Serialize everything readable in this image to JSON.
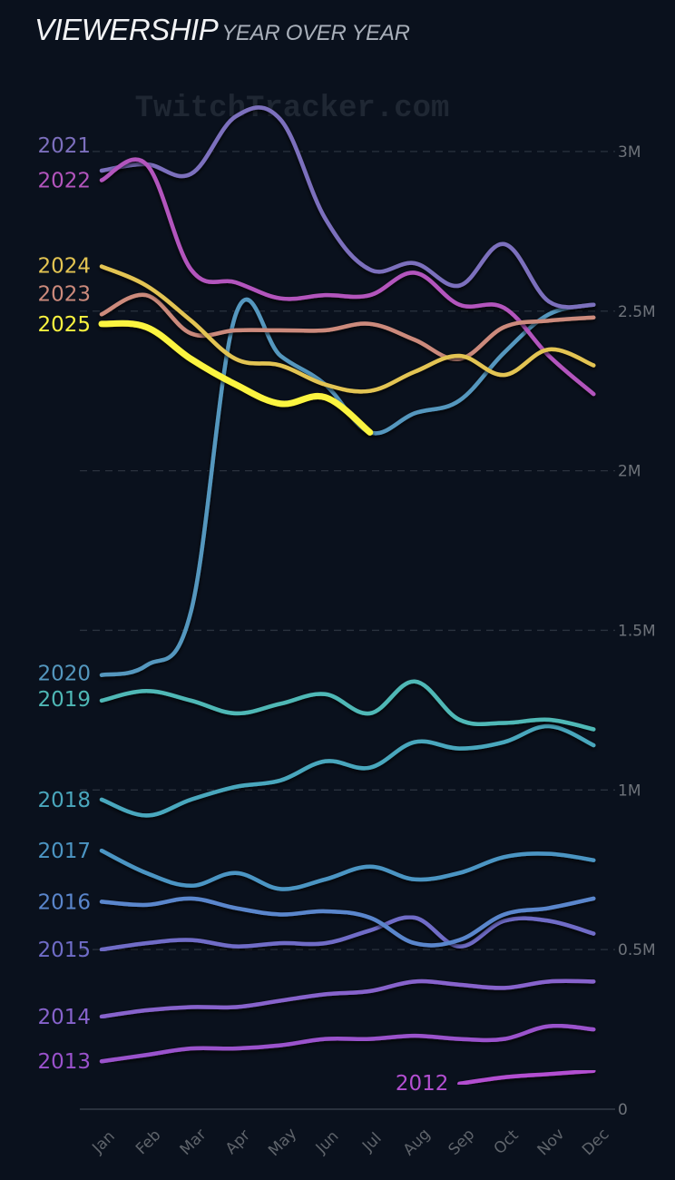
{
  "header": {
    "title": "VIEWERSHIP",
    "subtitle": "YEAR OVER YEAR"
  },
  "watermark": "TwitchTracker.com",
  "chart_data": {
    "type": "line",
    "title": "VIEWERSHIP",
    "subtitle": "YEAR OVER YEAR",
    "xlabel": "",
    "ylabel": "",
    "unit": "millions of viewers",
    "categories": [
      "Jan",
      "Feb",
      "Mar",
      "Apr",
      "May",
      "Jun",
      "Jul",
      "Aug",
      "Sep",
      "Oct",
      "Nov",
      "Dec"
    ],
    "ylim": [
      0,
      3.15
    ],
    "yticks": [
      {
        "value": 0,
        "label": "0"
      },
      {
        "value": 0.5,
        "label": "0.5M"
      },
      {
        "value": 1,
        "label": "1M"
      },
      {
        "value": 1.5,
        "label": "1.5M"
      },
      {
        "value": 2,
        "label": "2M"
      },
      {
        "value": 2.5,
        "label": "2.5M"
      },
      {
        "value": 3,
        "label": "3M"
      }
    ],
    "grid": true,
    "yaxis_position": "right",
    "legend": "inline-left",
    "series": [
      {
        "name": "2012",
        "color": "#b34fd1",
        "start_month": 8,
        "values": [
          0.08,
          0.1,
          0.11,
          0.12
        ]
      },
      {
        "name": "2013",
        "color": "#9a52cc",
        "start_month": 0,
        "values": [
          0.15,
          0.17,
          0.19,
          0.19,
          0.2,
          0.22,
          0.22,
          0.23,
          0.22,
          0.22,
          0.26,
          0.25
        ]
      },
      {
        "name": "2014",
        "color": "#8763cc",
        "start_month": 0,
        "values": [
          0.29,
          0.31,
          0.32,
          0.32,
          0.34,
          0.36,
          0.37,
          0.4,
          0.39,
          0.38,
          0.4,
          0.4
        ]
      },
      {
        "name": "2015",
        "color": "#6f6cc7",
        "start_month": 0,
        "values": [
          0.5,
          0.52,
          0.53,
          0.51,
          0.52,
          0.52,
          0.56,
          0.6,
          0.51,
          0.59,
          0.59,
          0.55
        ]
      },
      {
        "name": "2016",
        "color": "#5a86cc",
        "start_month": 0,
        "values": [
          0.65,
          0.64,
          0.66,
          0.63,
          0.61,
          0.62,
          0.6,
          0.52,
          0.53,
          0.61,
          0.63,
          0.66
        ]
      },
      {
        "name": "2017",
        "color": "#4c95c3",
        "start_month": 0,
        "values": [
          0.81,
          0.74,
          0.7,
          0.74,
          0.69,
          0.72,
          0.76,
          0.72,
          0.74,
          0.79,
          0.8,
          0.78
        ]
      },
      {
        "name": "2018",
        "color": "#4aa7bd",
        "start_month": 0,
        "values": [
          0.97,
          0.92,
          0.97,
          1.01,
          1.03,
          1.09,
          1.07,
          1.15,
          1.13,
          1.15,
          1.2,
          1.14
        ]
      },
      {
        "name": "2019",
        "color": "#4fb8b6",
        "start_month": 0,
        "values": [
          1.28,
          1.31,
          1.28,
          1.24,
          1.27,
          1.3,
          1.24,
          1.34,
          1.22,
          1.21,
          1.22,
          1.19
        ]
      },
      {
        "name": "2020",
        "color": "#5497be",
        "start_month": 0,
        "values": [
          1.36,
          1.39,
          1.56,
          2.49,
          2.36,
          2.27,
          2.12,
          2.18,
          2.22,
          2.37,
          2.49,
          2.52
        ]
      },
      {
        "name": "2021",
        "color": "#7c6fbd",
        "start_month": 0,
        "values": [
          2.94,
          2.96,
          2.93,
          3.11,
          3.1,
          2.79,
          2.63,
          2.65,
          2.58,
          2.71,
          2.53,
          2.52
        ]
      },
      {
        "name": "2022",
        "color": "#b355bd",
        "start_month": 0,
        "values": [
          2.91,
          2.96,
          2.63,
          2.59,
          2.54,
          2.55,
          2.55,
          2.62,
          2.52,
          2.51,
          2.36,
          2.24
        ]
      },
      {
        "name": "2023",
        "color": "#cc8a7c",
        "start_month": 0,
        "values": [
          2.49,
          2.55,
          2.43,
          2.44,
          2.44,
          2.44,
          2.46,
          2.41,
          2.35,
          2.45,
          2.47,
          2.48
        ]
      },
      {
        "name": "2024",
        "color": "#e3c452",
        "start_month": 0,
        "values": [
          2.64,
          2.58,
          2.47,
          2.35,
          2.33,
          2.27,
          2.25,
          2.31,
          2.36,
          2.3,
          2.38,
          2.33
        ]
      },
      {
        "name": "2025",
        "color": "#fbf43f",
        "start_month": 0,
        "highlight": true,
        "values": [
          2.46,
          2.45,
          2.35,
          2.27,
          2.21,
          2.23,
          2.12
        ]
      }
    ]
  }
}
